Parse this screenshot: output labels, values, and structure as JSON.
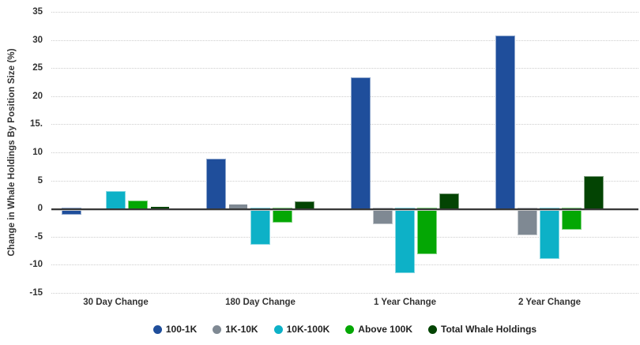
{
  "chart_data": {
    "type": "bar",
    "title": "",
    "xlabel": "",
    "ylabel": "Change in Whale Holdings By Position Size (%)",
    "categories": [
      "30 Day Change",
      "180 Day Change",
      "1 Year Change",
      "2 Year Change"
    ],
    "series": [
      {
        "name": "100-1K",
        "color": "#1f4e9b",
        "stroke": "#8fa7cd",
        "values": [
          -0.9,
          8.7,
          23.2,
          30.7
        ]
      },
      {
        "name": "1K-10K",
        "color": "#7f8993",
        "stroke": "#bfc4c9",
        "values": [
          -0.3,
          0.7,
          -2.6,
          -4.6
        ]
      },
      {
        "name": "10K-100K",
        "color": "#0db1c7",
        "stroke": "#86d8e3",
        "values": [
          3.0,
          -6.3,
          -11.4,
          -8.8
        ]
      },
      {
        "name": "Above 100K",
        "color": "#04a704",
        "stroke": "#82d382",
        "values": [
          1.3,
          -2.3,
          -8.0,
          -3.6
        ]
      },
      {
        "name": "Total Whale Holdings",
        "color": "#034403",
        "stroke": "#81a181",
        "values": [
          0.3,
          1.1,
          2.5,
          5.6
        ]
      }
    ],
    "ylim": [
      -15,
      35
    ],
    "ytick_step": 5,
    "ytick_labels": [
      "35",
      "30",
      "25",
      "20",
      "15.",
      "10",
      "5",
      "0",
      "-5",
      "-10",
      "-15"
    ],
    "grid": "horizontal-dotted",
    "legend_position": "bottom"
  },
  "colors": {
    "background": "#ffffff",
    "gridline": "#cdcdcd",
    "zero_line": "#373737",
    "tick_text": "#333333",
    "legend_text": "#222222"
  }
}
